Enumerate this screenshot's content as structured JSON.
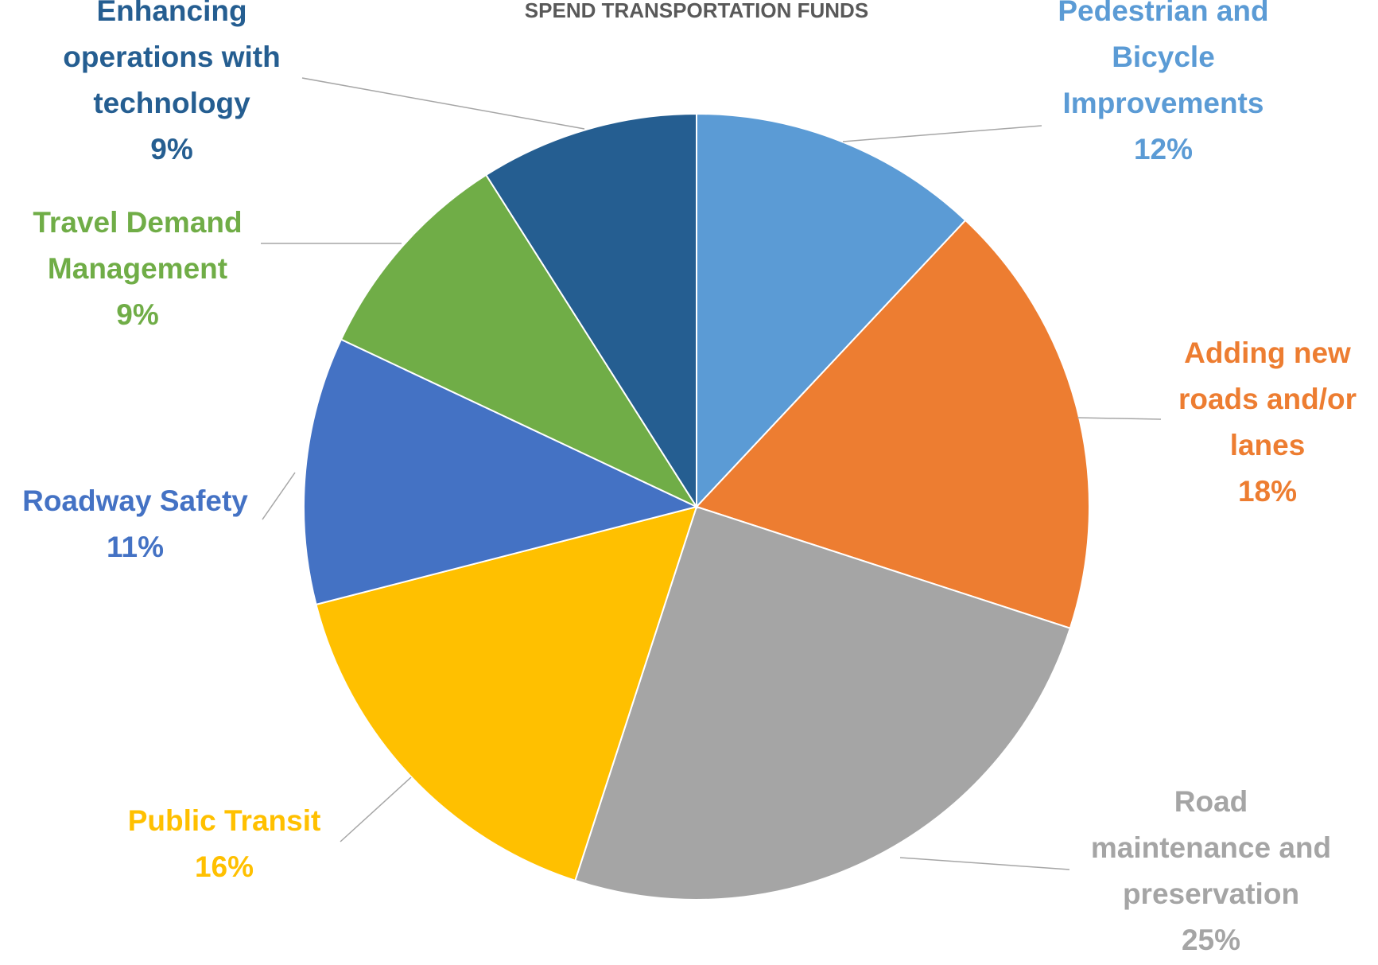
{
  "chart_data": {
    "type": "pie",
    "title": "SPEND TRANSPORTATION FUNDS",
    "slices": [
      {
        "name": "Pedestrian and Bicycle Improvements",
        "label_lines": [
          "Pedestrian and",
          "Bicycle",
          "Improvements"
        ],
        "value": 12,
        "value_label": "12%",
        "color": "#5B9BD5"
      },
      {
        "name": "Adding new roads and/or lanes",
        "label_lines": [
          "Adding new",
          "roads and/or",
          "lanes"
        ],
        "value": 18,
        "value_label": "18%",
        "color": "#ED7D31"
      },
      {
        "name": "Road maintenance and preservation",
        "label_lines": [
          "Road",
          "maintenance and",
          "preservation"
        ],
        "value": 25,
        "value_label": "25%",
        "color": "#A5A5A5"
      },
      {
        "name": "Public Transit",
        "label_lines": [
          "Public Transit"
        ],
        "value": 16,
        "value_label": "16%",
        "color": "#FFC000"
      },
      {
        "name": "Roadway Safety",
        "label_lines": [
          "Roadway Safety"
        ],
        "value": 11,
        "value_label": "11%",
        "color": "#4472C4"
      },
      {
        "name": "Travel Demand Management",
        "label_lines": [
          "Travel Demand",
          "Management"
        ],
        "value": 9,
        "value_label": "9%",
        "color": "#70AD47"
      },
      {
        "name": "Enhancing operations with technology",
        "label_lines": [
          "Enhancing",
          "operations with",
          "technology"
        ],
        "value": 9,
        "value_label": "9%",
        "color": "#255E91"
      }
    ],
    "start_angle": "12 o'clock",
    "direction": "clockwise",
    "legend": "none"
  }
}
